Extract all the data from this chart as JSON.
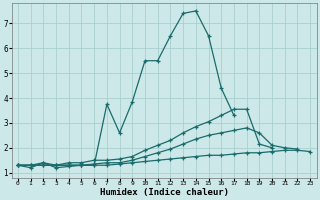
{
  "xlabel": "Humidex (Indice chaleur)",
  "background_color": "#cce8e8",
  "grid_color": "#aacfcf",
  "line_color": "#1a6b6b",
  "xlim": [
    -0.5,
    23.5
  ],
  "ylim": [
    0.8,
    7.8
  ],
  "xticks": [
    0,
    1,
    2,
    3,
    4,
    5,
    6,
    7,
    8,
    9,
    10,
    11,
    12,
    13,
    14,
    15,
    16,
    17,
    18,
    19,
    20,
    21,
    22,
    23
  ],
  "yticks": [
    1,
    2,
    3,
    4,
    5,
    6,
    7
  ],
  "lines": [
    {
      "x": [
        0,
        1,
        2,
        3,
        4,
        5,
        6,
        7,
        8,
        9,
        10,
        11,
        12,
        13,
        14,
        15,
        16,
        17,
        18,
        19,
        20,
        21,
        22
      ],
      "y": [
        1.3,
        1.2,
        1.4,
        1.2,
        1.25,
        1.3,
        1.3,
        3.75,
        2.6,
        3.85,
        5.5,
        5.5,
        6.5,
        7.4,
        7.5,
        6.5,
        4.4,
        3.3,
        null,
        null,
        null,
        null,
        null
      ]
    },
    {
      "x": [
        0,
        1,
        2,
        3,
        4,
        5,
        6,
        7,
        8,
        9,
        10,
        11,
        12,
        13,
        14,
        15,
        16,
        17,
        18,
        19,
        20,
        21,
        22
      ],
      "y": [
        1.3,
        1.3,
        1.4,
        1.3,
        1.4,
        1.4,
        1.5,
        1.5,
        1.55,
        1.65,
        1.9,
        2.1,
        2.3,
        2.6,
        2.85,
        3.05,
        3.3,
        3.55,
        3.55,
        2.15,
        2.0,
        null,
        null
      ]
    },
    {
      "x": [
        0,
        1,
        2,
        3,
        4,
        5,
        6,
        7,
        8,
        9,
        10,
        11,
        12,
        13,
        14,
        15,
        16,
        17,
        18,
        19,
        20,
        21,
        22,
        23
      ],
      "y": [
        1.3,
        1.3,
        1.3,
        1.3,
        1.3,
        1.3,
        1.35,
        1.4,
        1.4,
        1.5,
        1.65,
        1.8,
        1.95,
        2.15,
        2.35,
        2.5,
        2.6,
        2.7,
        2.8,
        2.6,
        2.1,
        2.0,
        1.95,
        null
      ]
    },
    {
      "x": [
        0,
        1,
        2,
        3,
        4,
        5,
        6,
        7,
        8,
        9,
        10,
        11,
        12,
        13,
        14,
        15,
        16,
        17,
        18,
        19,
        20,
        21,
        22,
        23
      ],
      "y": [
        1.3,
        1.3,
        1.3,
        1.3,
        1.3,
        1.3,
        1.3,
        1.3,
        1.35,
        1.4,
        1.45,
        1.5,
        1.55,
        1.6,
        1.65,
        1.7,
        1.7,
        1.75,
        1.8,
        1.8,
        1.85,
        1.9,
        1.9,
        1.85
      ]
    }
  ]
}
